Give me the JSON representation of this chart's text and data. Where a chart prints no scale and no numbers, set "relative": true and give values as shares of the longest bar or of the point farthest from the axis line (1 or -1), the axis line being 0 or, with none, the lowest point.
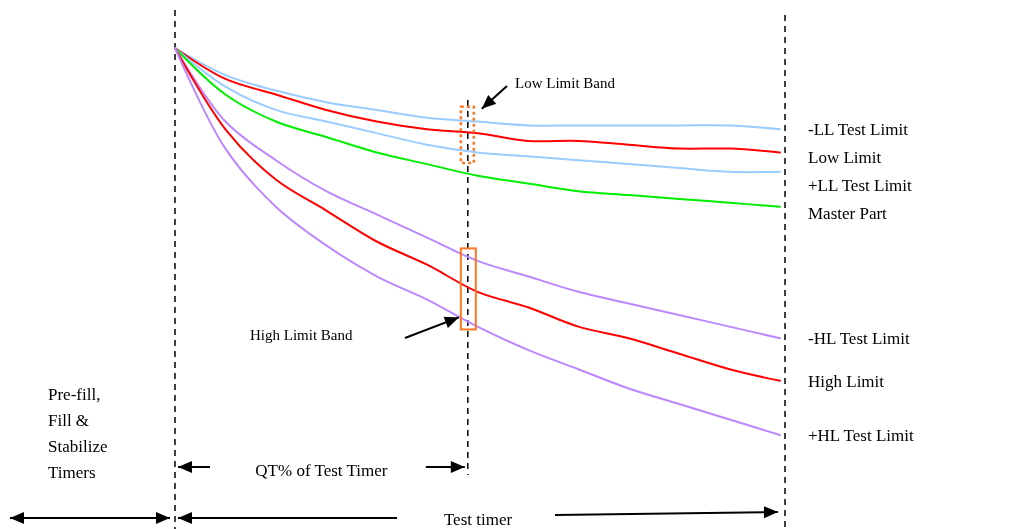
{
  "chart_data": {
    "type": "line",
    "relative": true,
    "categories": [
      null,
      null,
      null,
      null,
      null,
      null,
      null,
      null,
      null,
      null,
      null,
      null,
      null
    ],
    "series": [
      {
        "name": "-LL Test Limit",
        "color": "#99ccff",
        "values": [
          1,
          0.93,
          0.89,
          0.86,
          0.84,
          0.82,
          0.81,
          0.8,
          0.8,
          0.8,
          0.8,
          0.8,
          0.79
        ]
      },
      {
        "name": "Low Limit",
        "color": "#ff0000",
        "values": [
          1,
          0.92,
          0.88,
          0.84,
          0.81,
          0.79,
          0.78,
          0.76,
          0.76,
          0.75,
          0.74,
          0.74,
          0.73
        ]
      },
      {
        "name": "+LL Test Limit",
        "color": "#99ccff",
        "values": [
          1,
          0.9,
          0.84,
          0.81,
          0.78,
          0.75,
          0.73,
          0.72,
          0.71,
          0.7,
          0.69,
          0.68,
          0.68
        ]
      },
      {
        "name": "Master Part",
        "color": "#00ee00",
        "values": [
          1,
          0.88,
          0.81,
          0.77,
          0.73,
          0.7,
          0.67,
          0.65,
          0.63,
          0.62,
          0.61,
          0.6,
          0.59
        ]
      },
      {
        "name": "-HL Test Limit",
        "color": "#bb88ff",
        "values": [
          1,
          0.81,
          0.71,
          0.63,
          0.57,
          0.51,
          0.45,
          0.41,
          0.37,
          0.34,
          0.31,
          0.28,
          0.25
        ]
      },
      {
        "name": "High Limit",
        "color": "#ff0000",
        "values": [
          1,
          0.79,
          0.66,
          0.58,
          0.5,
          0.44,
          0.37,
          0.33,
          0.28,
          0.25,
          0.21,
          0.17,
          0.14
        ]
      },
      {
        "name": "+HL Test Limit",
        "color": "#bb88ff",
        "values": [
          1,
          0.74,
          0.59,
          0.49,
          0.41,
          0.35,
          0.28,
          0.22,
          0.17,
          0.12,
          0.08,
          0.04,
          0
        ]
      }
    ],
    "annotations": [
      "Low Limit Band",
      "High Limit Band",
      "Pre-fill, Fill & Stabilize Timers",
      "QT% of Test Timer",
      "Test timer"
    ]
  }
}
